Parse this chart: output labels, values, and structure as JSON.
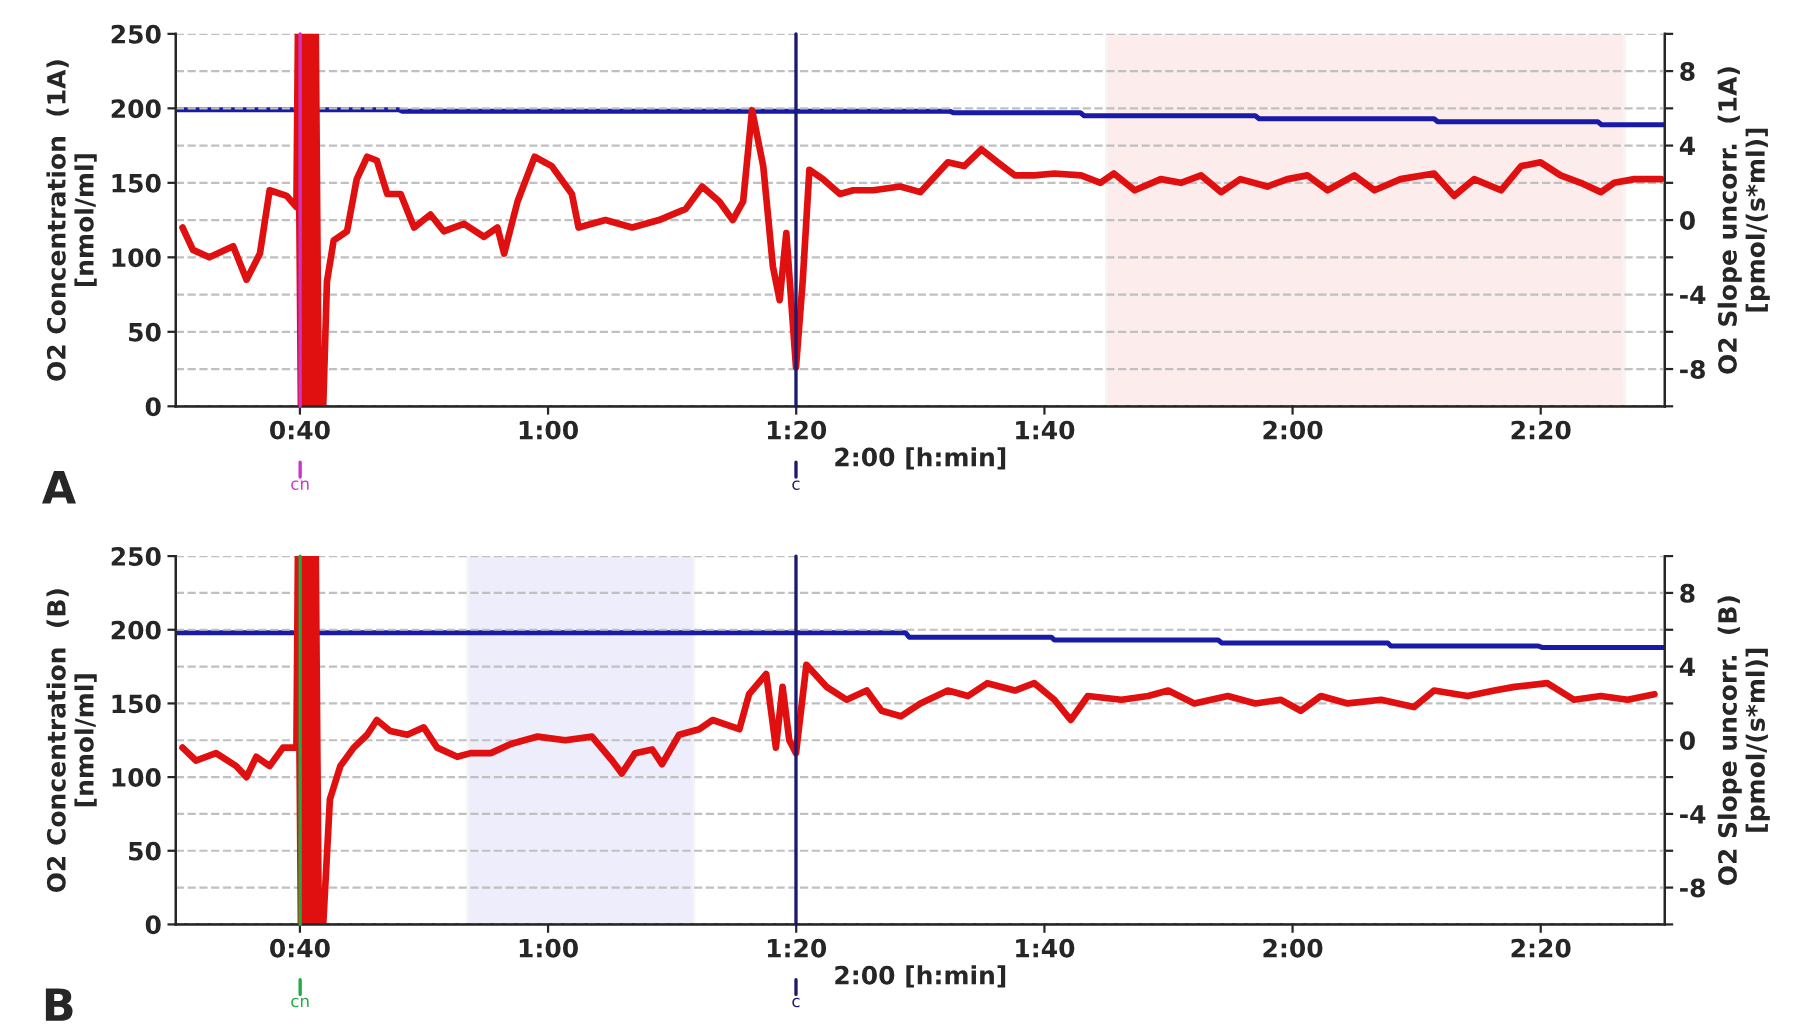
{
  "chart_data": [
    {
      "type": "line",
      "xlabel": "2:00 [h:min]",
      "ylabel": "O2 Concentration  (1A)\n[nmol/ml]",
      "y2label": "O2 Slope uncorr.  (1A)\n[pmol/(s*ml)]",
      "annotations": [
        "A"
      ],
      "grid": "y",
      "xlim": [
        0.5,
        2.5
      ],
      "xticks": [
        {
          "value": 0.6667,
          "label": "0:40"
        },
        {
          "value": 1.0,
          "label": "1:00"
        },
        {
          "value": 1.3333,
          "label": "1:20"
        },
        {
          "value": 1.6667,
          "label": "1:40"
        },
        {
          "value": 2.0,
          "label": "2:00"
        },
        {
          "value": 2.3333,
          "label": "2:20"
        }
      ],
      "ylim": [
        0,
        250
      ],
      "yticks": [
        0,
        50,
        100,
        150,
        200,
        250
      ],
      "y2lim": [
        -10,
        10
      ],
      "y2ticks": [
        {
          "value": -10,
          "label": null
        },
        -8,
        {
          "value": -6,
          "label": null
        },
        -4,
        {
          "value": -2,
          "label": null
        },
        0,
        {
          "value": 2,
          "label": null
        },
        4,
        {
          "value": 6,
          "label": null
        },
        8,
        {
          "value": 10,
          "label": null
        }
      ],
      "series": [
        {
          "axis": "y",
          "color": "#1a1aa8",
          "x": [
            0.5,
            0.664,
            0.665,
            0.67,
            0.8,
            0.805,
            1.54,
            1.545,
            1.715,
            1.72,
            1.95,
            1.955,
            2.19,
            2.195,
            2.41,
            2.415,
            2.5
          ],
          "values": [
            199,
            199,
            null,
            199,
            199,
            198,
            198,
            197,
            197,
            195,
            195,
            193,
            193,
            191,
            191,
            189,
            189
          ]
        },
        {
          "axis": "y2",
          "color": "#e01010",
          "x": [
            0.509,
            0.523,
            0.545,
            0.577,
            0.595,
            0.613,
            0.626,
            0.649,
            0.662,
            0.664,
            0.668,
            0.672,
            0.676,
            0.68,
            0.684,
            0.688,
            0.692,
            0.698,
            0.703,
            0.712,
            0.73,
            0.743,
            0.757,
            0.77,
            0.784,
            0.802,
            0.82,
            0.842,
            0.86,
            0.887,
            0.914,
            0.932,
            0.941,
            0.959,
            0.982,
            1.005,
            1.032,
            1.041,
            1.077,
            1.113,
            1.149,
            1.185,
            1.207,
            1.23,
            1.248,
            1.262,
            1.274,
            1.289,
            1.302,
            1.311,
            1.32,
            1.333,
            1.342,
            1.351,
            1.369,
            1.392,
            1.41,
            1.437,
            1.473,
            1.5,
            1.537,
            1.559,
            1.582,
            1.604,
            1.627,
            1.653,
            1.68,
            1.716,
            1.742,
            1.76,
            1.788,
            1.823,
            1.85,
            1.877,
            1.904,
            1.93,
            1.966,
            1.993,
            2.02,
            2.047,
            2.083,
            2.11,
            2.145,
            2.19,
            2.217,
            2.244,
            2.28,
            2.307,
            2.333,
            2.36,
            2.387,
            2.414,
            2.432,
            2.459,
            2.495
          ],
          "values": [
            -0.4,
            -1.6,
            -2.0,
            -1.4,
            -3.2,
            -1.8,
            1.6,
            1.3,
            0.7,
            10,
            -10,
            10,
            -10,
            10,
            -10,
            10,
            -10,
            -10,
            -3.3,
            -1.1,
            -0.6,
            2.2,
            3.4,
            3.2,
            1.4,
            1.4,
            -0.4,
            0.3,
            -0.6,
            -0.2,
            -0.9,
            -0.4,
            -1.8,
            1.0,
            3.4,
            2.9,
            1.4,
            -0.4,
            0,
            -0.4,
            0,
            0.6,
            1.8,
            1.0,
            0,
            1.0,
            5.9,
            2.9,
            -2.5,
            -4.3,
            -0.7,
            -7.9,
            -3.3,
            2.7,
            2.2,
            1.4,
            1.6,
            1.6,
            1.8,
            1.5,
            3.1,
            2.9,
            3.8,
            3.1,
            2.4,
            2.4,
            2.5,
            2.4,
            2.0,
            2.5,
            1.6,
            2.2,
            2.0,
            2.4,
            1.5,
            2.2,
            1.8,
            2.2,
            2.4,
            1.6,
            2.4,
            1.6,
            2.2,
            2.5,
            1.3,
            2.2,
            1.6,
            2.9,
            3.1,
            2.4,
            2.0,
            1.5,
            2.0,
            2.2,
            2.2
          ]
        }
      ],
      "ref_lines": [
        {
          "axis": "x",
          "value": 0.667,
          "label": "cn",
          "color": "#cc33cc"
        },
        {
          "axis": "x",
          "value": 1.333,
          "label": "c",
          "color": "#1a1a6e"
        }
      ],
      "bands": [
        {
          "axis": "x",
          "from": 1.75,
          "to": 2.446,
          "color": "#e01010"
        }
      ]
    },
    {
      "type": "line",
      "xlabel": "2:00 [h:min]",
      "ylabel": "O2 Concentration  (B)\n[nmol/ml]",
      "y2label": "O2 Slope uncorr.  (B)\n[pmol/(s*ml)]",
      "annotations": [
        "B"
      ],
      "grid": "y",
      "xlim": [
        0.5,
        2.5
      ],
      "xticks": [
        {
          "value": 0.6667,
          "label": "0:40"
        },
        {
          "value": 1.0,
          "label": "1:00"
        },
        {
          "value": 1.3333,
          "label": "1:20"
        },
        {
          "value": 1.6667,
          "label": "1:40"
        },
        {
          "value": 2.0,
          "label": "2:00"
        },
        {
          "value": 2.3333,
          "label": "2:20"
        }
      ],
      "ylim": [
        0,
        250
      ],
      "yticks": [
        0,
        50,
        100,
        150,
        200,
        250
      ],
      "y2lim": [
        -10,
        10
      ],
      "y2ticks": [
        {
          "value": -10,
          "label": null
        },
        -8,
        {
          "value": -6,
          "label": null
        },
        -4,
        {
          "value": -2,
          "label": null
        },
        0,
        {
          "value": 2,
          "label": null
        },
        4,
        {
          "value": 6,
          "label": null
        },
        8,
        {
          "value": 10,
          "label": null
        }
      ],
      "series": [
        {
          "axis": "y",
          "color": "#1a1aa8",
          "x": [
            0.5,
            0.664,
            0.665,
            0.67,
            1.48,
            1.485,
            1.676,
            1.68,
            1.9,
            1.905,
            2.128,
            2.132,
            2.33,
            2.335,
            2.5
          ],
          "values": [
            198,
            198,
            null,
            198,
            198,
            195,
            195,
            193,
            193,
            191,
            191,
            189,
            189,
            188,
            188
          ]
        },
        {
          "axis": "y2",
          "color": "#e01010",
          "x": [
            0.509,
            0.527,
            0.554,
            0.581,
            0.595,
            0.608,
            0.626,
            0.644,
            0.662,
            0.664,
            0.668,
            0.672,
            0.676,
            0.68,
            0.684,
            0.688,
            0.692,
            0.698,
            0.707,
            0.721,
            0.739,
            0.757,
            0.77,
            0.788,
            0.811,
            0.833,
            0.851,
            0.878,
            0.896,
            0.923,
            0.95,
            0.986,
            1.023,
            1.059,
            1.086,
            1.099,
            1.117,
            1.14,
            1.153,
            1.176,
            1.203,
            1.221,
            1.257,
            1.27,
            1.293,
            1.306,
            1.315,
            1.324,
            1.333,
            1.347,
            1.374,
            1.401,
            1.428,
            1.448,
            1.474,
            1.5,
            1.537,
            1.564,
            1.59,
            1.627,
            1.653,
            1.68,
            1.702,
            1.725,
            1.77,
            1.806,
            1.833,
            1.868,
            1.913,
            1.95,
            1.984,
            2.011,
            2.038,
            2.074,
            2.119,
            2.163,
            2.19,
            2.235,
            2.271,
            2.298,
            2.342,
            2.378,
            2.414,
            2.45,
            2.486
          ],
          "values": [
            -0.4,
            -1.1,
            -0.7,
            -1.4,
            -2.0,
            -0.9,
            -1.4,
            -0.4,
            -0.4,
            10,
            -10,
            10,
            -10,
            10,
            -10,
            10,
            -10,
            -10,
            -3.2,
            -1.4,
            -0.4,
            0.3,
            1.1,
            0.5,
            0.3,
            0.7,
            -0.4,
            -0.9,
            -0.7,
            -0.7,
            -0.2,
            0.2,
            0,
            0.2,
            -1.1,
            -1.8,
            -0.7,
            -0.5,
            -1.3,
            0.3,
            0.6,
            1.1,
            0.6,
            2.5,
            3.6,
            -0.4,
            2.9,
            0,
            -0.7,
            4.1,
            2.9,
            2.2,
            2.7,
            1.6,
            1.3,
            2.0,
            2.7,
            2.4,
            3.1,
            2.7,
            3.1,
            2.2,
            1.1,
            2.4,
            2.2,
            2.4,
            2.7,
            2.0,
            2.4,
            2.0,
            2.2,
            1.6,
            2.4,
            2.0,
            2.2,
            1.8,
            2.7,
            2.4,
            2.7,
            2.9,
            3.1,
            2.2,
            2.4,
            2.2,
            2.5
          ]
        }
      ],
      "ref_lines": [
        {
          "axis": "x",
          "value": 0.667,
          "label": "cn",
          "color": "#22aa44"
        },
        {
          "axis": "x",
          "value": 1.333,
          "label": "c",
          "color": "#1a1a6e"
        }
      ],
      "bands": [
        {
          "axis": "x",
          "from": 0.892,
          "to": 1.196,
          "color": "#1a1ad0"
        }
      ]
    }
  ]
}
